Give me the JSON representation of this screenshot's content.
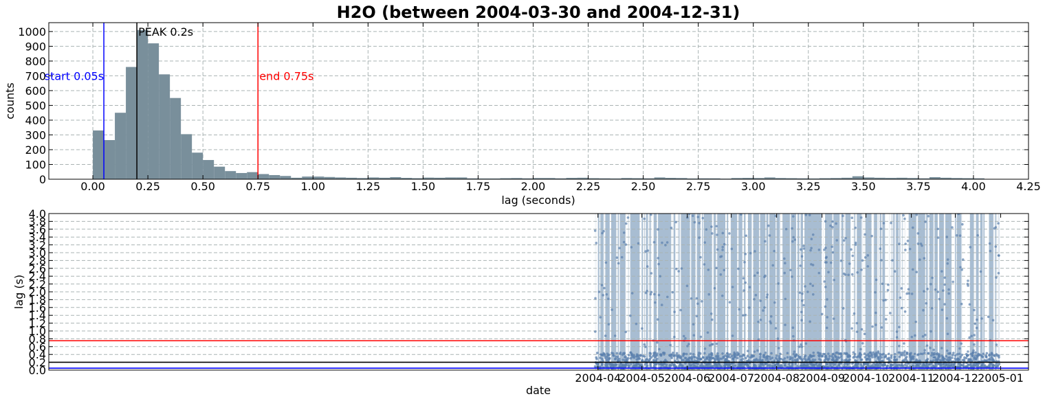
{
  "title": "H2O (between 2004-03-30 and 2004-12-31)",
  "colors": {
    "histogram_fill": "#798f9b",
    "span_fill": "#a8bdd2",
    "scatter": "#5b80ad",
    "start_line": "#0000ff",
    "end_line": "#ff0000",
    "peak_line": "#000000"
  },
  "chart_data": [
    {
      "type": "bar",
      "title": "H2O (between 2004-03-30 and 2004-12-31)",
      "xlabel": "lag (seconds)",
      "ylabel": "counts",
      "xlim": [
        -0.2,
        4.25
      ],
      "ylim": [
        0,
        1060
      ],
      "grid": true,
      "bin_width": 0.05,
      "x_ticks": [
        "0.00",
        "0.25",
        "0.50",
        "0.75",
        "1.00",
        "1.25",
        "1.50",
        "1.75",
        "2.00",
        "2.25",
        "2.50",
        "2.75",
        "3.00",
        "3.25",
        "3.50",
        "3.75",
        "4.00",
        "4.25"
      ],
      "y_ticks": [
        "0",
        "100",
        "200",
        "300",
        "400",
        "500",
        "600",
        "700",
        "800",
        "900",
        "1000"
      ],
      "bins": [
        {
          "x": 0.0,
          "count": 330
        },
        {
          "x": 0.05,
          "count": 265
        },
        {
          "x": 0.1,
          "count": 450
        },
        {
          "x": 0.15,
          "count": 760
        },
        {
          "x": 0.2,
          "count": 1010
        },
        {
          "x": 0.25,
          "count": 920
        },
        {
          "x": 0.3,
          "count": 710
        },
        {
          "x": 0.35,
          "count": 550
        },
        {
          "x": 0.4,
          "count": 305
        },
        {
          "x": 0.45,
          "count": 180
        },
        {
          "x": 0.5,
          "count": 130
        },
        {
          "x": 0.55,
          "count": 85
        },
        {
          "x": 0.6,
          "count": 55
        },
        {
          "x": 0.65,
          "count": 42
        },
        {
          "x": 0.7,
          "count": 48
        },
        {
          "x": 0.75,
          "count": 35
        },
        {
          "x": 0.8,
          "count": 28
        },
        {
          "x": 0.85,
          "count": 22
        },
        {
          "x": 0.9,
          "count": 10
        },
        {
          "x": 0.95,
          "count": 18
        },
        {
          "x": 1.0,
          "count": 18
        },
        {
          "x": 1.05,
          "count": 15
        },
        {
          "x": 1.1,
          "count": 12
        },
        {
          "x": 1.15,
          "count": 10
        },
        {
          "x": 1.2,
          "count": 8
        },
        {
          "x": 1.25,
          "count": 12
        },
        {
          "x": 1.3,
          "count": 10
        },
        {
          "x": 1.35,
          "count": 14
        },
        {
          "x": 1.4,
          "count": 9
        },
        {
          "x": 1.45,
          "count": 7
        },
        {
          "x": 1.5,
          "count": 11
        },
        {
          "x": 1.55,
          "count": 10
        },
        {
          "x": 1.6,
          "count": 12
        },
        {
          "x": 1.65,
          "count": 12
        },
        {
          "x": 1.7,
          "count": 6
        },
        {
          "x": 1.75,
          "count": 5
        },
        {
          "x": 1.8,
          "count": 5
        },
        {
          "x": 1.85,
          "count": 7
        },
        {
          "x": 1.9,
          "count": 8
        },
        {
          "x": 1.95,
          "count": 6
        },
        {
          "x": 2.0,
          "count": 8
        },
        {
          "x": 2.05,
          "count": 8
        },
        {
          "x": 2.1,
          "count": 6
        },
        {
          "x": 2.15,
          "count": 9
        },
        {
          "x": 2.2,
          "count": 10
        },
        {
          "x": 2.25,
          "count": 7
        },
        {
          "x": 2.3,
          "count": 6
        },
        {
          "x": 2.35,
          "count": 5
        },
        {
          "x": 2.4,
          "count": 8
        },
        {
          "x": 2.45,
          "count": 7
        },
        {
          "x": 2.5,
          "count": 6
        },
        {
          "x": 2.55,
          "count": 12
        },
        {
          "x": 2.6,
          "count": 9
        },
        {
          "x": 2.65,
          "count": 8
        },
        {
          "x": 2.7,
          "count": 5
        },
        {
          "x": 2.75,
          "count": 6
        },
        {
          "x": 2.8,
          "count": 6
        },
        {
          "x": 2.85,
          "count": 4
        },
        {
          "x": 2.9,
          "count": 8
        },
        {
          "x": 2.95,
          "count": 9
        },
        {
          "x": 3.0,
          "count": 8
        },
        {
          "x": 3.05,
          "count": 12
        },
        {
          "x": 3.1,
          "count": 8
        },
        {
          "x": 3.15,
          "count": 7
        },
        {
          "x": 3.2,
          "count": 6
        },
        {
          "x": 3.25,
          "count": 5
        },
        {
          "x": 3.3,
          "count": 7
        },
        {
          "x": 3.35,
          "count": 8
        },
        {
          "x": 3.4,
          "count": 10
        },
        {
          "x": 3.45,
          "count": 20
        },
        {
          "x": 3.5,
          "count": 12
        },
        {
          "x": 3.55,
          "count": 10
        },
        {
          "x": 3.6,
          "count": 9
        },
        {
          "x": 3.65,
          "count": 10
        },
        {
          "x": 3.7,
          "count": 8
        },
        {
          "x": 3.75,
          "count": 6
        },
        {
          "x": 3.8,
          "count": 14
        },
        {
          "x": 3.85,
          "count": 10
        },
        {
          "x": 3.9,
          "count": 8
        },
        {
          "x": 3.95,
          "count": 7
        },
        {
          "x": 4.0,
          "count": 6
        }
      ],
      "annotations": [
        {
          "text": "start 0.05s",
          "x": 0.05,
          "color": "#0000ff",
          "label_at_count": 700,
          "align": "right"
        },
        {
          "text": "PEAK 0.2s",
          "x": 0.2,
          "color": "#000000",
          "label_at_count": 1000,
          "align": "left"
        },
        {
          "text": "end 0.75s",
          "x": 0.75,
          "color": "#ff0000",
          "label_at_count": 700,
          "align": "left"
        }
      ]
    },
    {
      "type": "scatter",
      "xlabel": "date",
      "ylabel": "lag (s)",
      "xlim": [
        "2003-03-23",
        "2005-01-20"
      ],
      "ylim": [
        0,
        4.0
      ],
      "grid": true,
      "x_ticks": [
        "2004-04",
        "2004-05",
        "2004-06",
        "2004-07",
        "2004-08",
        "2004-09",
        "2004-10",
        "2004-11",
        "2004-12",
        "2005-01"
      ],
      "y_ticks": [
        "0.0",
        "0.2",
        "0.4",
        "0.6",
        "0.8",
        "1.0",
        "1.2",
        "1.4",
        "1.6",
        "1.8",
        "2.0",
        "2.2",
        "2.4",
        "2.6",
        "2.8",
        "3.0",
        "3.2",
        "3.4",
        "3.6",
        "3.8",
        "4.0"
      ],
      "shaded_range": {
        "start": "2004-03-30",
        "end": "2004-12-31"
      },
      "data_gaps": [
        [
          "2004-04-09",
          "2004-04-10"
        ],
        [
          "2004-04-22",
          "2004-04-23"
        ],
        [
          "2004-05-08",
          "2004-05-09"
        ],
        [
          "2004-05-24",
          "2004-05-25"
        ],
        [
          "2004-06-10",
          "2004-06-11"
        ],
        [
          "2004-06-27",
          "2004-06-28"
        ],
        [
          "2004-07-15",
          "2004-07-16"
        ],
        [
          "2004-08-04",
          "2004-08-05"
        ],
        [
          "2004-08-19",
          "2004-08-20"
        ],
        [
          "2004-09-02",
          "2004-09-03"
        ],
        [
          "2004-09-21",
          "2004-09-22"
        ],
        [
          "2004-10-14",
          "2004-10-16"
        ],
        [
          "2004-10-28",
          "2004-10-30"
        ],
        [
          "2004-11-19",
          "2004-11-20"
        ],
        [
          "2004-12-06",
          "2004-12-11"
        ],
        [
          "2004-12-17",
          "2004-12-18"
        ],
        [
          "2004-12-21",
          "2004-12-24"
        ]
      ],
      "point_band": {
        "typical_lag_range": [
          0.05,
          0.45
        ],
        "outlier_lag_range": [
          0.45,
          4.0
        ]
      },
      "hlines": [
        {
          "y": 0.75,
          "color": "#ff0000"
        },
        {
          "y": 0.2,
          "color": "#000000"
        },
        {
          "y": 0.05,
          "color": "#0000ff"
        }
      ]
    }
  ]
}
